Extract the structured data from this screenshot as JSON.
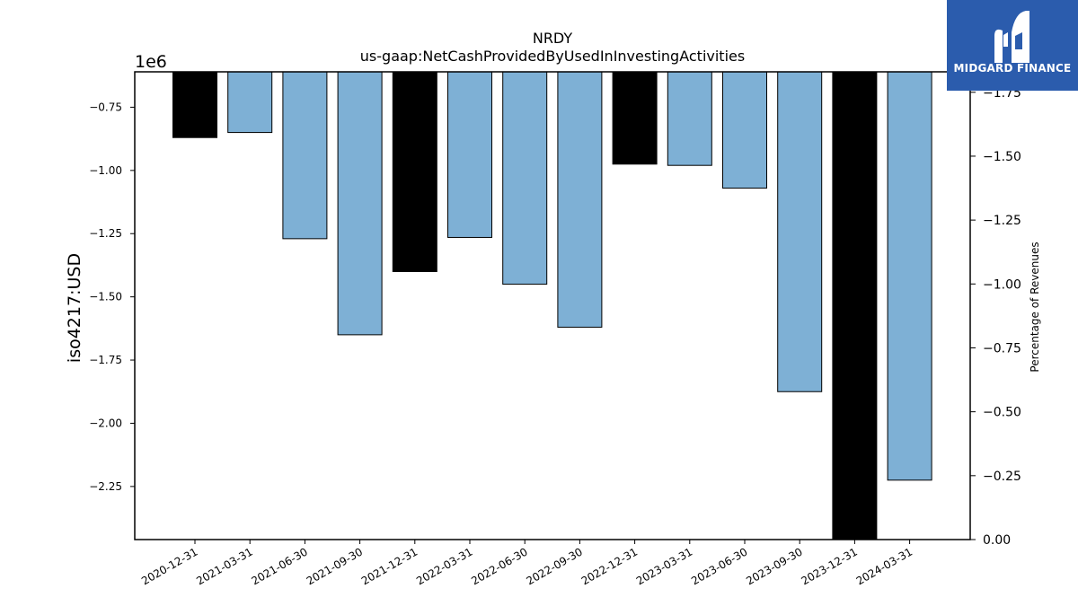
{
  "chart_data": {
    "type": "bar",
    "title": "NRDY",
    "subtitle": "us-gaap:NetCashProvidedByUsedInInvestingActivities",
    "ylabel": "iso4217:USD",
    "y_multiplier_label": "1e6",
    "y2label": "Percentage of Revenues",
    "categories": [
      "2020-12-31",
      "2021-03-31",
      "2021-06-30",
      "2021-09-30",
      "2021-12-31",
      "2022-03-31",
      "2022-06-30",
      "2022-09-30",
      "2022-12-31",
      "2023-03-31",
      "2023-06-30",
      "2023-09-30",
      "2023-12-31",
      "2024-03-31"
    ],
    "values": [
      -0.87,
      -0.85,
      -1.27,
      -1.65,
      -1.4,
      -1.265,
      -1.45,
      -1.62,
      -0.975,
      -0.98,
      -1.07,
      -1.875,
      -2.46,
      -2.225
    ],
    "bar_kind": [
      "annual",
      "quarter",
      "quarter",
      "quarter",
      "annual",
      "quarter",
      "quarter",
      "quarter",
      "annual",
      "quarter",
      "quarter",
      "quarter",
      "annual",
      "quarter"
    ],
    "ylim": [
      -2.46,
      -0.61
    ],
    "yticks": [
      -0.75,
      -1.0,
      -1.25,
      -1.5,
      -1.75,
      -2.0,
      -2.25
    ],
    "ytick_labels": [
      "−0.75",
      "−1.00",
      "−1.25",
      "−1.50",
      "−1.75",
      "−2.00",
      "−2.25"
    ],
    "y2lim": [
      0,
      -1.83
    ],
    "y2ticks": [
      0,
      -0.25,
      -0.5,
      -0.75,
      -1.0,
      -1.25,
      -1.5,
      -1.75
    ],
    "y2tick_labels": [
      "0.00",
      "−0.25",
      "−0.50",
      "−0.75",
      "−1.00",
      "−1.25",
      "−1.50",
      "−1.75"
    ],
    "grid": false,
    "colors": {
      "annual": "#000000",
      "quarter": "#7eb0d5",
      "edge": "#000000"
    }
  },
  "logo": {
    "text": "MIDGARD FINANCE",
    "background": "#2b5cad"
  }
}
